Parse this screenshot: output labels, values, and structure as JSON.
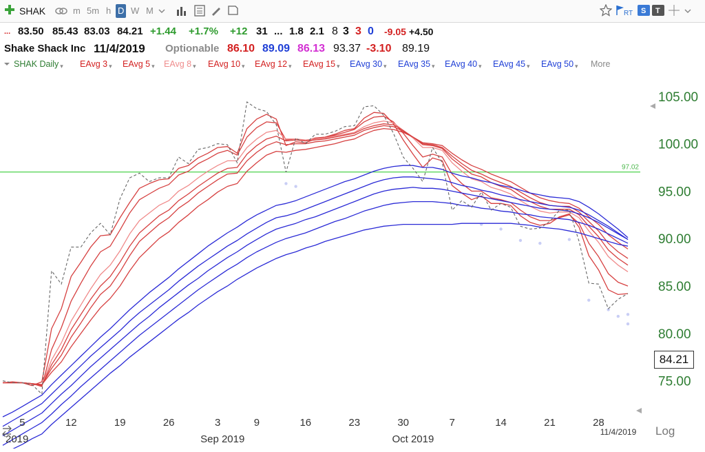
{
  "toolbar": {
    "symbol": "SHAK",
    "intervals": [
      "m",
      "5m",
      "h",
      "D",
      "W",
      "M"
    ],
    "active_interval": "D",
    "icons": [
      "add-icon",
      "link-icon",
      "bar-chart-icon",
      "calculator-icon",
      "pencil-icon",
      "note-icon",
      "star-icon",
      "flag-icon",
      "rt-icon",
      "s-icon",
      "t-icon",
      "move-icon",
      "chevron-down-icon"
    ],
    "rt_label": "RT"
  },
  "quote_line1": {
    "ellipsis": "...",
    "open": "83.50",
    "high": "85.43",
    "low": "83.03",
    "close": "84.21",
    "change": "+1.44",
    "change_pct": "+1.7%",
    "v1": "+12",
    "v2": "31",
    "v3": "...",
    "v4": "1.8",
    "v5": "2.1",
    "v6": "8",
    "v7": "3",
    "v8": "3",
    "v9": "0",
    "v10": "-9.05",
    "v11": "+4.50",
    "colors": {
      "green": "#2e9b2e",
      "red": "#d32020",
      "blue": "#1f3fd6",
      "magenta": "#d330d3"
    }
  },
  "quote_line2": {
    "company": "Shake Shack Inc",
    "date": "11/4/2019",
    "optionable": "Optionable",
    "p1": "86.10",
    "p2": "89.09",
    "p3": "86.13",
    "p4": "93.37",
    "p5": "-3.10",
    "p6": "89.19"
  },
  "indicators": {
    "items": [
      {
        "label": "SHAK Daily",
        "color": "#2e7d32"
      },
      {
        "label": "EAvg 3",
        "color": "#d32020"
      },
      {
        "label": "EAvg 5",
        "color": "#d32020"
      },
      {
        "label": "EAvg 8",
        "color": "#ef8c8c"
      },
      {
        "label": "EAvg 10",
        "color": "#d32020"
      },
      {
        "label": "EAvg 12",
        "color": "#d32020"
      },
      {
        "label": "EAvg 15",
        "color": "#d32020"
      },
      {
        "label": "EAvg 30",
        "color": "#1f3fd6"
      },
      {
        "label": "EAvg 35",
        "color": "#1f3fd6"
      },
      {
        "label": "EAvg 40",
        "color": "#1f3fd6"
      },
      {
        "label": "EAvg 45",
        "color": "#1f3fd6"
      },
      {
        "label": "EAvg 50",
        "color": "#1f3fd6"
      }
    ],
    "more": "More"
  },
  "chart_data": {
    "type": "line",
    "ylim": [
      72.0,
      106.0
    ],
    "y_ticks": [
      "105.00",
      "100.00",
      "95.00",
      "90.00",
      "85.00",
      "80.00",
      "75.00"
    ],
    "y_tick_values": [
      105,
      100,
      95,
      90,
      85,
      80,
      75
    ],
    "x_ticks": [
      "5",
      "12",
      "19",
      "26",
      "3",
      "9",
      "16",
      "23",
      "30",
      "7",
      "14",
      "21",
      "28"
    ],
    "month_labels": [
      "Sep 2019",
      "Oct 2019"
    ],
    "cut_label": "2019",
    "end_date": "11/4/2019",
    "log_label": "Log",
    "current_price": "84.21",
    "horizontal_line": {
      "value": 97.02,
      "label": "97.02",
      "color": "#4cd14c"
    },
    "price_series": {
      "name": "SHAK Daily",
      "color": "#666666",
      "x": [
        0,
        1,
        2,
        3,
        4,
        5,
        6,
        7,
        8,
        9,
        10,
        11,
        12,
        13,
        14,
        15,
        16,
        17,
        18,
        19,
        20,
        21,
        22,
        23,
        24,
        25,
        26,
        27,
        28,
        29,
        30,
        31,
        32,
        33,
        34,
        35,
        36,
        37,
        38,
        39,
        40,
        41,
        42,
        43,
        44,
        45,
        46,
        47,
        48,
        49,
        50,
        51,
        52,
        53,
        54,
        55,
        56,
        57,
        58,
        59,
        60,
        61,
        62,
        63,
        64
      ],
      "values": [
        75.0,
        74.8,
        74.8,
        74.6,
        73.6,
        86.6,
        85.2,
        89.1,
        89.1,
        90.6,
        91.6,
        90.4,
        94.2,
        96.4,
        96.9,
        96.0,
        96.4,
        96.4,
        98.6,
        97.9,
        99.4,
        99.6,
        100.0,
        99.9,
        98.0,
        104.4,
        103.7,
        103.4,
        102.0,
        97.0,
        100.6,
        100.0,
        101.0,
        101.0,
        101.3,
        101.8,
        101.9,
        103.9,
        104.0,
        103.0,
        101.1,
        98.6,
        97.4,
        96.0,
        99.6,
        98.0,
        93.0,
        94.0,
        93.3,
        94.9,
        93.0,
        93.7,
        93.3,
        91.3,
        91.0,
        91.1,
        91.8,
        93.0,
        93.0,
        89.7,
        85.3,
        85.2,
        82.6,
        83.6,
        84.2
      ]
    },
    "ema_series": [
      {
        "name": "EAvg 3",
        "color": "#d64040",
        "width": 1.3,
        "values": [
          74.8,
          74.9,
          74.8,
          74.5,
          74.9,
          80.5,
          82.6,
          86.0,
          87.5,
          89.1,
          90.3,
          90.4,
          92.2,
          93.8,
          95.3,
          95.8,
          96.2,
          96.3,
          97.4,
          97.7,
          98.5,
          99.0,
          99.6,
          99.7,
          99.0,
          101.6,
          102.6,
          103.1,
          102.6,
          99.8,
          100.2,
          100.1,
          100.5,
          100.7,
          101.0,
          101.4,
          101.6,
          102.7,
          103.3,
          103.2,
          102.1,
          100.4,
          98.9,
          97.5,
          98.5,
          98.2,
          95.6,
          94.8,
          94.1,
          94.5,
          93.7,
          93.7,
          93.5,
          92.4,
          91.7,
          91.4,
          91.6,
          92.3,
          92.6,
          91.2,
          88.2,
          86.7,
          84.6,
          84.1,
          84.2
        ]
      },
      {
        "name": "EAvg 5",
        "color": "#d64040",
        "width": 1.3,
        "values": [
          74.8,
          74.8,
          74.8,
          74.7,
          74.4,
          78.3,
          80.6,
          83.4,
          85.3,
          87.1,
          88.6,
          89.2,
          90.9,
          92.7,
          94.1,
          94.7,
          95.3,
          95.7,
          96.7,
          97.1,
          97.9,
          98.4,
          99.0,
          99.3,
          98.8,
          100.7,
          101.7,
          102.3,
          102.2,
          100.4,
          100.5,
          100.3,
          100.6,
          100.7,
          100.9,
          101.2,
          101.5,
          102.3,
          102.8,
          102.9,
          102.3,
          101.1,
          99.8,
          98.6,
          98.9,
          98.6,
          96.8,
          95.8,
          95.0,
          95.0,
          94.3,
          94.1,
          93.8,
          93.0,
          92.3,
          91.9,
          91.9,
          92.2,
          92.5,
          91.6,
          89.5,
          88.1,
          86.3,
          85.4,
          85.0
        ]
      },
      {
        "name": "EAvg 8",
        "color": "#f08a8a",
        "width": 1.3,
        "values": [
          74.8,
          74.8,
          74.8,
          74.7,
          74.5,
          77.2,
          79.0,
          81.3,
          83.0,
          84.7,
          86.2,
          87.2,
          88.7,
          90.5,
          91.9,
          92.7,
          93.5,
          94.0,
          95.0,
          95.6,
          96.4,
          97.1,
          97.7,
          98.2,
          98.2,
          99.6,
          100.5,
          101.2,
          101.4,
          100.5,
          100.5,
          100.4,
          100.5,
          100.6,
          100.8,
          101.0,
          101.2,
          101.8,
          102.2,
          102.4,
          102.2,
          101.4,
          100.6,
          99.6,
          99.6,
          99.3,
          98.0,
          97.1,
          96.3,
          96.0,
          95.4,
          95.1,
          94.7,
          94.0,
          93.4,
          92.9,
          92.7,
          92.8,
          92.8,
          92.2,
          90.8,
          89.6,
          88.1,
          87.2,
          86.5
        ]
      },
      {
        "name": "EAvg 10",
        "color": "#d64040",
        "width": 1.3,
        "values": [
          74.8,
          74.8,
          74.8,
          74.7,
          74.5,
          76.7,
          78.3,
          80.4,
          82.0,
          83.6,
          85.0,
          86.0,
          87.5,
          89.2,
          90.6,
          91.5,
          92.4,
          93.0,
          94.0,
          94.7,
          95.5,
          96.2,
          96.9,
          97.4,
          97.5,
          98.9,
          99.8,
          100.5,
          100.8,
          100.3,
          100.4,
          100.3,
          100.4,
          100.5,
          100.7,
          100.9,
          101.1,
          101.6,
          101.9,
          102.1,
          102.0,
          101.4,
          100.7,
          99.9,
          99.8,
          99.5,
          98.4,
          97.6,
          96.8,
          96.5,
          95.9,
          95.5,
          95.2,
          94.5,
          93.9,
          93.4,
          93.1,
          93.1,
          93.1,
          92.5,
          91.3,
          90.2,
          88.8,
          87.9,
          87.2
        ]
      },
      {
        "name": "EAvg 12",
        "color": "#d64040",
        "width": 1.3,
        "values": [
          74.8,
          74.8,
          74.8,
          74.7,
          74.6,
          76.3,
          77.7,
          79.6,
          81.1,
          82.7,
          84.1,
          85.0,
          86.5,
          88.2,
          89.7,
          90.6,
          91.5,
          92.2,
          93.2,
          93.9,
          94.8,
          95.5,
          96.2,
          96.8,
          96.9,
          98.2,
          99.1,
          99.8,
          100.2,
          99.9,
          100.0,
          100.0,
          100.2,
          100.3,
          100.5,
          100.7,
          100.9,
          101.4,
          101.7,
          101.9,
          101.8,
          101.3,
          100.7,
          100.0,
          99.9,
          99.6,
          98.7,
          97.9,
          97.2,
          96.8,
          96.3,
          95.9,
          95.5,
          94.9,
          94.3,
          93.8,
          93.5,
          93.4,
          93.4,
          92.8,
          91.8,
          90.8,
          89.5,
          88.6,
          87.9
        ]
      },
      {
        "name": "EAvg 15",
        "color": "#d64040",
        "width": 1.3,
        "values": [
          74.8,
          74.8,
          74.8,
          74.7,
          74.6,
          75.9,
          77.0,
          78.6,
          80.0,
          81.4,
          82.7,
          83.7,
          85.0,
          86.6,
          88.0,
          89.0,
          90.0,
          90.7,
          91.7,
          92.5,
          93.4,
          94.1,
          94.9,
          95.5,
          95.8,
          97.1,
          98.0,
          98.8,
          99.2,
          99.1,
          99.3,
          99.4,
          99.6,
          99.8,
          100.0,
          100.3,
          100.5,
          101.0,
          101.4,
          101.6,
          101.5,
          101.2,
          100.7,
          100.1,
          100.0,
          99.8,
          99.0,
          98.3,
          97.7,
          97.3,
          96.8,
          96.4,
          96.0,
          95.4,
          94.8,
          94.3,
          94.0,
          93.8,
          93.7,
          93.2,
          92.3,
          91.5,
          90.4,
          89.6,
          88.9
        ]
      },
      {
        "name": "EAvg 30",
        "color": "#2a2ad6",
        "width": 1.3,
        "values": [
          71.2,
          71.7,
          72.3,
          72.9,
          73.5,
          74.6,
          75.6,
          76.6,
          77.6,
          78.6,
          79.6,
          80.5,
          81.5,
          82.5,
          83.4,
          84.3,
          85.1,
          85.9,
          86.8,
          87.6,
          88.4,
          89.2,
          89.9,
          90.6,
          91.2,
          91.9,
          92.5,
          93.0,
          93.5,
          93.7,
          94.0,
          94.4,
          94.8,
          95.2,
          95.6,
          96.0,
          96.3,
          96.7,
          97.1,
          97.4,
          97.6,
          97.7,
          97.7,
          97.5,
          97.5,
          97.3,
          96.9,
          96.6,
          96.4,
          96.1,
          95.9,
          95.6,
          95.4,
          95.1,
          94.8,
          94.6,
          94.4,
          94.3,
          94.2,
          93.9,
          93.3,
          92.6,
          91.8,
          91.0,
          90.1
        ]
      },
      {
        "name": "EAvg 35",
        "color": "#2a2ad6",
        "width": 1.3,
        "values": [
          70.2,
          70.8,
          71.4,
          72.0,
          72.6,
          73.6,
          74.6,
          75.6,
          76.6,
          77.6,
          78.5,
          79.4,
          80.3,
          81.3,
          82.2,
          83.0,
          83.8,
          84.6,
          85.5,
          86.3,
          87.1,
          87.8,
          88.5,
          89.2,
          89.8,
          90.5,
          91.1,
          91.7,
          92.2,
          92.4,
          92.7,
          93.1,
          93.5,
          93.9,
          94.3,
          94.7,
          95.1,
          95.5,
          95.9,
          96.2,
          96.4,
          96.5,
          96.5,
          96.4,
          96.3,
          96.2,
          95.9,
          95.6,
          95.4,
          95.1,
          94.9,
          94.6,
          94.4,
          94.1,
          93.9,
          93.7,
          93.5,
          93.4,
          93.3,
          93.0,
          92.5,
          91.9,
          91.3,
          90.6,
          89.9
        ]
      },
      {
        "name": "EAvg 40",
        "color": "#2a2ad6",
        "width": 1.3,
        "values": [
          69.2,
          69.8,
          70.4,
          71.0,
          71.6,
          72.6,
          73.6,
          74.5,
          75.5,
          76.5,
          77.4,
          78.3,
          79.2,
          80.1,
          81.0,
          81.8,
          82.7,
          83.5,
          84.3,
          85.1,
          85.8,
          86.6,
          87.3,
          88.0,
          88.6,
          89.3,
          89.9,
          90.5,
          91.0,
          91.3,
          91.6,
          92.0,
          92.3,
          92.7,
          93.1,
          93.5,
          93.9,
          94.3,
          94.7,
          95.0,
          95.2,
          95.3,
          95.4,
          95.3,
          95.3,
          95.2,
          95.0,
          94.8,
          94.6,
          94.4,
          94.2,
          94.0,
          93.8,
          93.6,
          93.4,
          93.2,
          93.1,
          93.0,
          92.9,
          92.6,
          92.2,
          91.7,
          91.1,
          90.5,
          89.9
        ]
      },
      {
        "name": "EAvg 45",
        "color": "#2a2ad6",
        "width": 1.3,
        "values": [
          68.2,
          68.8,
          69.4,
          70.0,
          70.6,
          71.5,
          72.5,
          73.4,
          74.4,
          75.3,
          76.2,
          77.1,
          78.0,
          78.9,
          79.8,
          80.6,
          81.4,
          82.2,
          83.0,
          83.8,
          84.6,
          85.3,
          86.0,
          86.7,
          87.3,
          88.0,
          88.6,
          89.1,
          89.6,
          90.0,
          90.3,
          90.6,
          91.0,
          91.4,
          91.8,
          92.1,
          92.5,
          92.9,
          93.2,
          93.5,
          93.7,
          93.8,
          93.9,
          93.9,
          93.9,
          93.8,
          93.7,
          93.5,
          93.4,
          93.2,
          93.1,
          92.9,
          92.8,
          92.6,
          92.5,
          92.3,
          92.2,
          92.1,
          92.0,
          91.7,
          91.4,
          91.0,
          90.5,
          90.0,
          89.5
        ]
      },
      {
        "name": "EAvg 50",
        "color": "#2a2ad6",
        "width": 1.3,
        "values": [
          67.2,
          67.8,
          68.3,
          68.9,
          69.4,
          70.4,
          71.3,
          72.2,
          73.1,
          74.0,
          74.9,
          75.8,
          76.6,
          77.5,
          78.3,
          79.1,
          79.9,
          80.7,
          81.5,
          82.2,
          83.0,
          83.7,
          84.4,
          85.0,
          85.7,
          86.3,
          86.9,
          87.4,
          87.9,
          88.3,
          88.6,
          89.0,
          89.3,
          89.7,
          90.0,
          90.3,
          90.6,
          90.9,
          91.1,
          91.3,
          91.4,
          91.5,
          91.5,
          91.5,
          91.5,
          91.5,
          91.5,
          91.6,
          91.6,
          91.6,
          91.6,
          91.6,
          91.6,
          91.5,
          91.4,
          91.2,
          91.1,
          91.0,
          90.8,
          90.6,
          90.3,
          90.0,
          89.7,
          89.4,
          89.2
        ]
      }
    ],
    "faint_dots": {
      "color": "#c9cef5",
      "points": [
        [
          29,
          95.8
        ],
        [
          30,
          95.5
        ],
        [
          49,
          91.5
        ],
        [
          51,
          91.0
        ],
        [
          53,
          89.8
        ],
        [
          55,
          89.5
        ],
        [
          58,
          89.9
        ],
        [
          60,
          83.5
        ],
        [
          62,
          82.5
        ],
        [
          63,
          81.8
        ],
        [
          64,
          81.0
        ],
        [
          64,
          82.0
        ]
      ]
    }
  }
}
